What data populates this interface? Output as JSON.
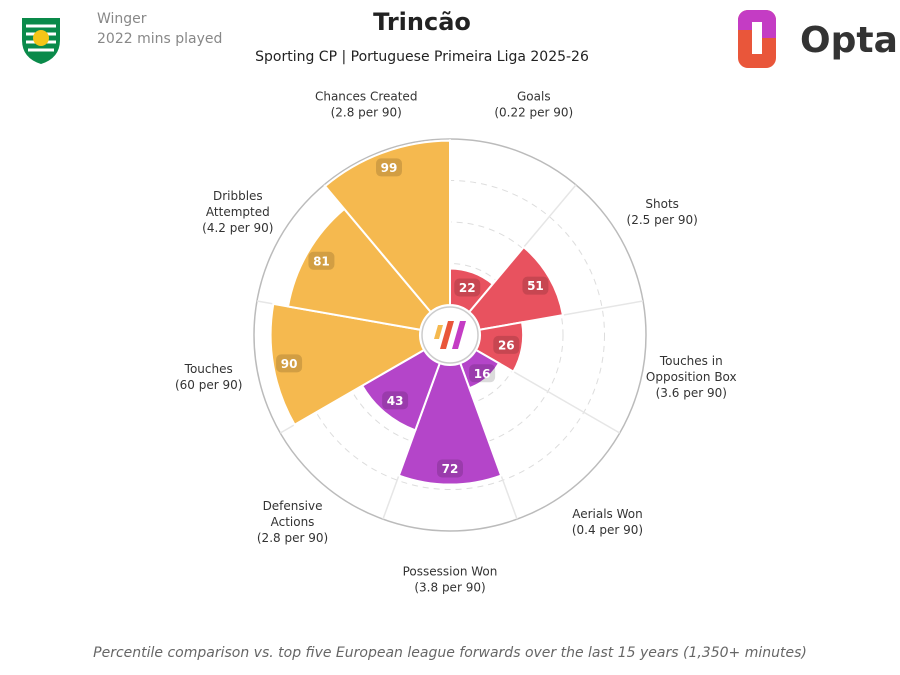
{
  "header": {
    "position": "Winger",
    "minutes": "2022 mins played",
    "brand": "Opta"
  },
  "chart_data": {
    "type": "pizza",
    "title": "Trincão",
    "subtitle": "Sporting CP | Portuguese Primeira Liga 2025-26",
    "categories": [
      [
        "Goals"
      ],
      [
        "Shots"
      ],
      [
        "Touches in",
        "Opposition Box"
      ],
      [
        "Aerials Won"
      ],
      [
        "Possession Won"
      ],
      [
        "Defensive",
        "Actions"
      ],
      [
        "Touches"
      ],
      [
        "Dribbles",
        "Attempted"
      ],
      [
        "Chances Created"
      ]
    ],
    "rates": [
      "(0.22 per 90)",
      "(2.5 per 90)",
      "(3.6 per 90)",
      "(0.4 per 90)",
      "(3.8 per 90)",
      "(2.8 per 90)",
      "(60 per 90)",
      "(4.2 per 90)",
      "(2.8 per 90)"
    ],
    "values": [
      22,
      51,
      26,
      16,
      72,
      43,
      90,
      81,
      99
    ],
    "colors": [
      "#e8525f",
      "#e8525f",
      "#e8525f",
      "#b445c9",
      "#b445c9",
      "#b445c9",
      "#f5b94f",
      "#f5b94f",
      "#f5b94f"
    ],
    "rlim": [
      0,
      100
    ],
    "rticks": [
      25,
      50,
      75
    ],
    "note": "Percentile comparison vs. top five European league forwards over the last 15 years (1,350+ minutes)"
  }
}
